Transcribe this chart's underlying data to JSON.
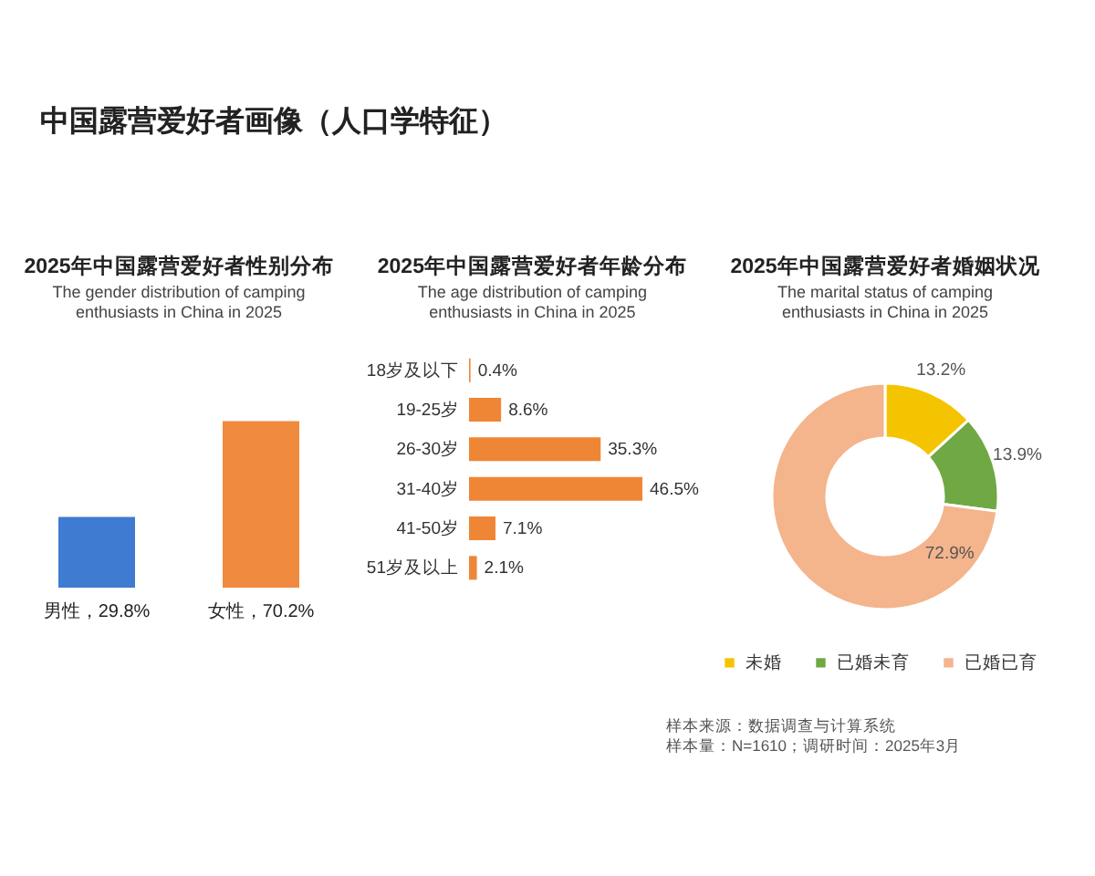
{
  "chart_data": [
    {
      "type": "other",
      "title": "中国露营爱好者画像（人口学特征）",
      "annotations": [
        "样本来源：数据调查与计算系统",
        "样本量：N=1610；调研时间：2025年3月"
      ]
    },
    {
      "type": "bar",
      "title": "2025年中国露营爱好者性别分布",
      "subtitle": "The gender distribution of camping enthusiasts in China in 2025",
      "categories": [
        null,
        null
      ],
      "values": [
        29.8,
        70.2
      ],
      "colors": [
        "#3f7bd0",
        "#f08a3e"
      ],
      "value_labels": [
        "男性，29.8%",
        "女性，70.2%"
      ],
      "tick_labels": false
    },
    {
      "type": "bar",
      "orientation": "horizontal",
      "title": "2025年中国露营爱好者年龄分布",
      "subtitle": "The age distribution of camping enthusiasts in China in 2025",
      "categories": [
        "18岁及以下",
        "19-25岁",
        "26-30岁",
        "31-40岁",
        "41-50岁",
        "51岁及以上"
      ],
      "values": [
        0.4,
        8.6,
        35.3,
        46.5,
        7.1,
        2.1
      ],
      "color": "#ef8636",
      "value_labels": [
        "0.4%",
        "8.6%",
        "35.3%",
        "46.5%",
        "7.1%",
        "2.1%"
      ],
      "tick_labels": "y"
    },
    {
      "type": "donut",
      "title": "2025年中国露营爱好者婚姻状况",
      "subtitle": "The marital status of camping enthusiasts in China in 2025",
      "categories": [
        "未婚",
        "已婚未育",
        "已婚已育"
      ],
      "values": [
        13.2,
        13.9,
        72.9
      ],
      "colors": [
        "#f5c400",
        "#70a844",
        "#f4b48c"
      ],
      "value_labels": [
        "13.2%",
        "13.9%",
        "72.9%"
      ],
      "legend": "bottom"
    }
  ]
}
